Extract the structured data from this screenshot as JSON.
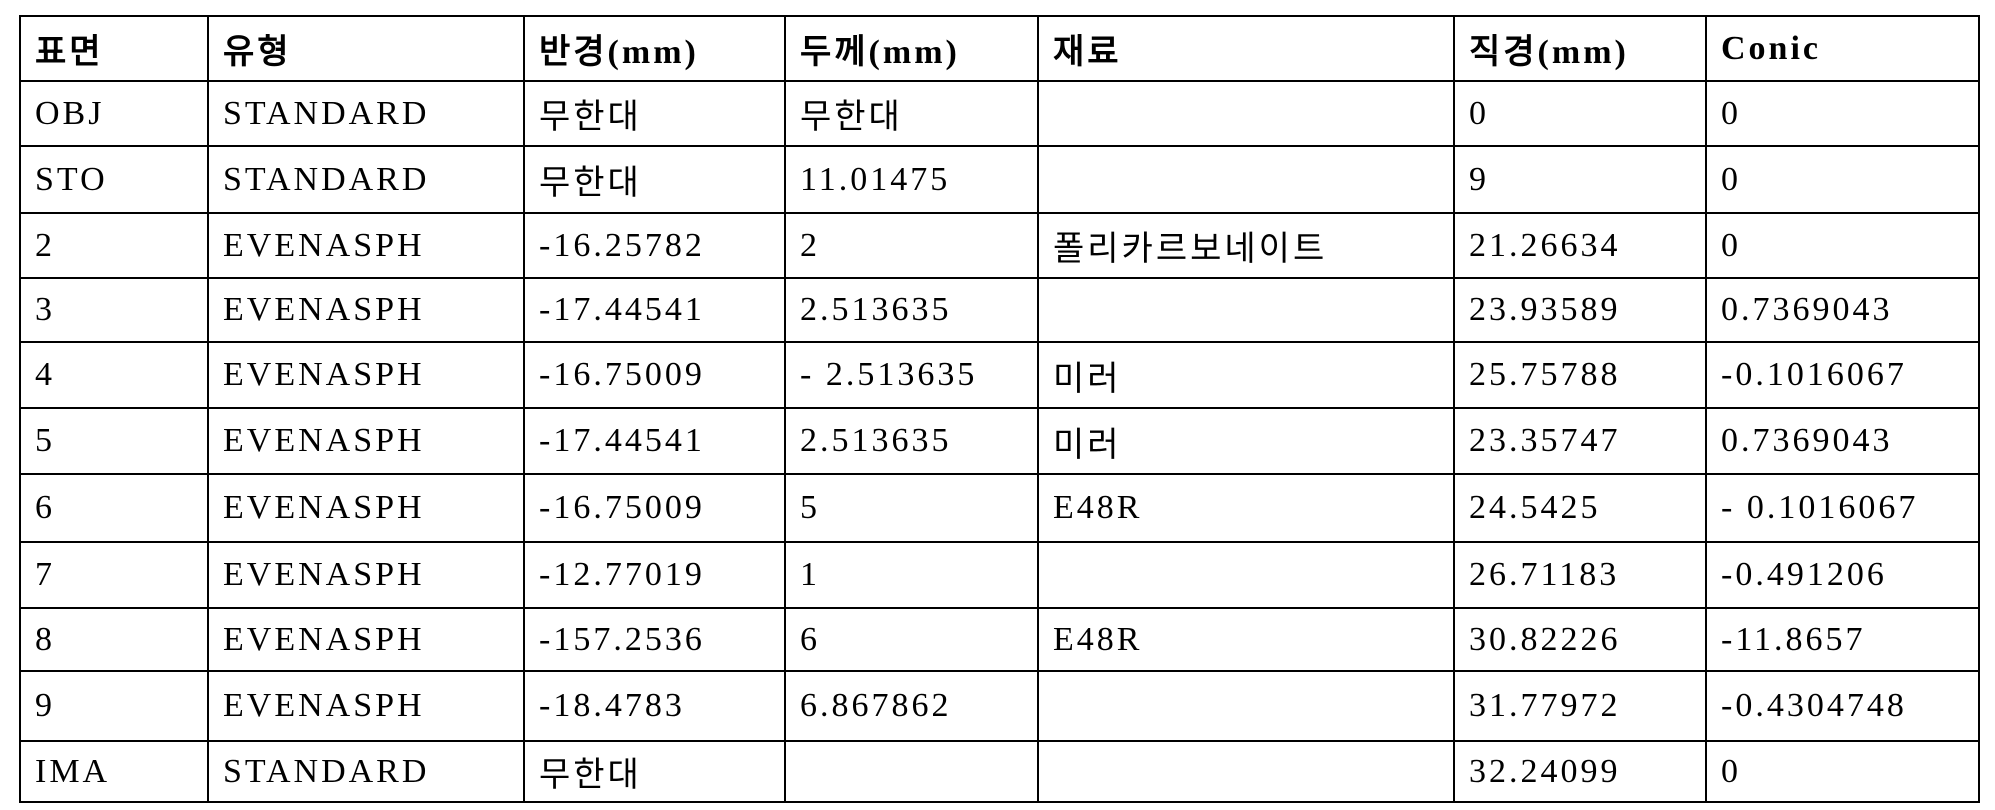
{
  "table": {
    "headers": [
      "표면",
      "유형",
      "반경(mm)",
      "두께(mm)",
      "재료",
      "직경(mm)",
      "Conic"
    ],
    "rows": [
      [
        "OBJ",
        "STANDARD",
        "무한대",
        "무한대",
        "",
        "0",
        "0"
      ],
      [
        "STO",
        "STANDARD",
        "무한대",
        "11.01475",
        "",
        "9",
        "0"
      ],
      [
        "2",
        "EVENASPH",
        "-16.25782",
        "2",
        "폴리카르보네이트",
        "21.26634",
        "0"
      ],
      [
        "3",
        "EVENASPH",
        "-17.44541",
        "2.513635",
        "",
        "23.93589",
        "0.7369043"
      ],
      [
        "4",
        "EVENASPH",
        "-16.75009",
        "- 2.513635",
        "미러",
        "25.75788",
        "-0.1016067"
      ],
      [
        "5",
        "EVENASPH",
        "-17.44541",
        "2.513635",
        "미러",
        "23.35747",
        "0.7369043"
      ],
      [
        "6",
        "EVENASPH",
        "-16.75009",
        "5",
        "E48R",
        "24.5425",
        "- 0.1016067"
      ],
      [
        "7",
        "EVENASPH",
        "-12.77019",
        "1",
        "",
        "26.71183",
        "-0.491206"
      ],
      [
        "8",
        "EVENASPH",
        "-157.2536",
        "6",
        "E48R",
        "30.82226",
        "-11.8657"
      ],
      [
        "9",
        "EVENASPH",
        "-18.4783",
        "6.867862",
        "",
        "31.77972",
        "-0.4304748"
      ],
      [
        "IMA",
        "STANDARD",
        "무한대",
        "",
        "",
        "32.24099",
        "0"
      ]
    ]
  }
}
